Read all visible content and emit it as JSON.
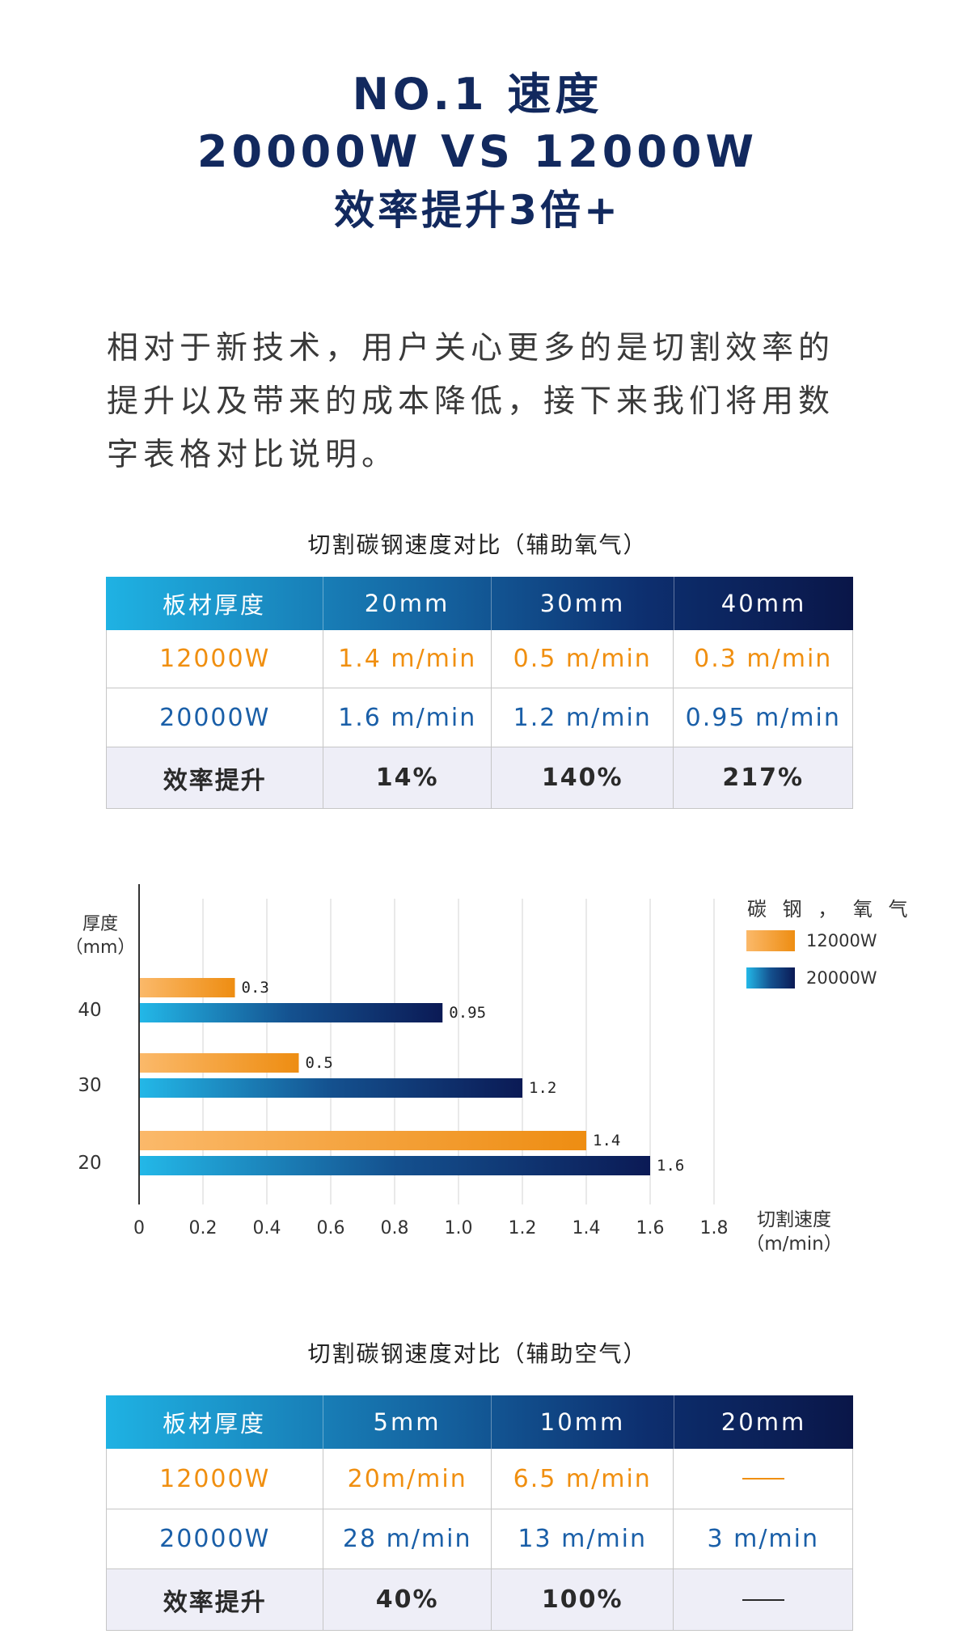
{
  "headline": {
    "line1": "NO.1 速度",
    "line2": "20000W VS 12000W",
    "line3": "效率提升3倍+"
  },
  "intro": "相对于新技术，用户关心更多的是切割效率的提升以及带来的成本降低，接下来我们将用数字表格对比说明。",
  "table_oxygen": {
    "caption": "切割碳钢速度对比（辅助氧气）",
    "headers": [
      "板材厚度",
      "20mm",
      "30mm",
      "40mm"
    ],
    "rows": [
      [
        "12000W",
        "1.4 m/min",
        "0.5 m/min",
        "0.3 m/min"
      ],
      [
        "20000W",
        "1.6 m/min",
        "1.2 m/min",
        "0.95 m/min"
      ],
      [
        "效率提升",
        "14%",
        "140%",
        "217%"
      ]
    ]
  },
  "chart_data": {
    "type": "bar",
    "orientation": "horizontal",
    "ylabel": "厚度\n（mm）",
    "xlabel": "切割速度\n（m/min）",
    "categories": [
      "40",
      "30",
      "20"
    ],
    "series": [
      {
        "name": "12000W",
        "values": [
          0.3,
          0.5,
          1.4
        ],
        "labels": [
          "0.3",
          "0.5",
          "1.4"
        ]
      },
      {
        "name": "20000W",
        "values": [
          0.95,
          1.2,
          1.6
        ],
        "labels": [
          "0.95",
          "1.2",
          "1.6"
        ]
      }
    ],
    "xlim": [
      0,
      1.8
    ],
    "xticks": [
      "0",
      "0.2",
      "0.4",
      "0.6",
      "0.8",
      "1.0",
      "1.2",
      "1.4",
      "1.6",
      "1.8"
    ],
    "grid": true,
    "legend_title": "碳 钢 ， 氧 气",
    "legend_position": "top-right",
    "colors": {
      "12000W": [
        "#fbb96a",
        "#ee8d12"
      ],
      "20000W": [
        "#23b8e8",
        "#0b1a55"
      ]
    }
  },
  "table_air": {
    "caption": "切割碳钢速度对比（辅助空气）",
    "headers": [
      "板材厚度",
      "5mm",
      "10mm",
      "20mm"
    ],
    "rows": [
      [
        "12000W",
        "20m/min",
        "6.5 m/min",
        ""
      ],
      [
        "20000W",
        "28 m/min",
        "13 m/min",
        "3 m/min"
      ],
      [
        "效率提升",
        "40%",
        "100%",
        ""
      ]
    ]
  },
  "colors": {
    "heading": "#12295e",
    "orange": "#f08f10",
    "blue": "#1a5fa8",
    "gain_bg": "#eeeef7"
  }
}
